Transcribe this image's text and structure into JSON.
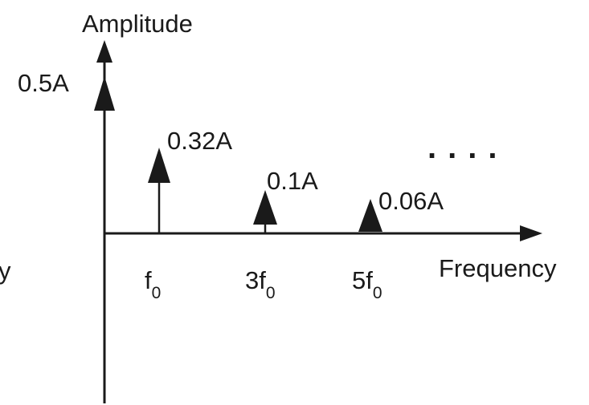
{
  "axes": {
    "y_label": "Amplitude",
    "x_label": "Frequency",
    "left_edge_fragment": "y"
  },
  "harmonics": [
    {
      "amplitude_label": "0.5A",
      "frequency_label": "",
      "frequency_sub": ""
    },
    {
      "amplitude_label": "0.32A",
      "frequency_label": "f",
      "frequency_sub": "0"
    },
    {
      "amplitude_label": "0.1A",
      "frequency_label": "3f",
      "frequency_sub": "0"
    },
    {
      "amplitude_label": "0.06A",
      "frequency_label": "5f",
      "frequency_sub": "0"
    }
  ],
  "continuation": "...."
}
